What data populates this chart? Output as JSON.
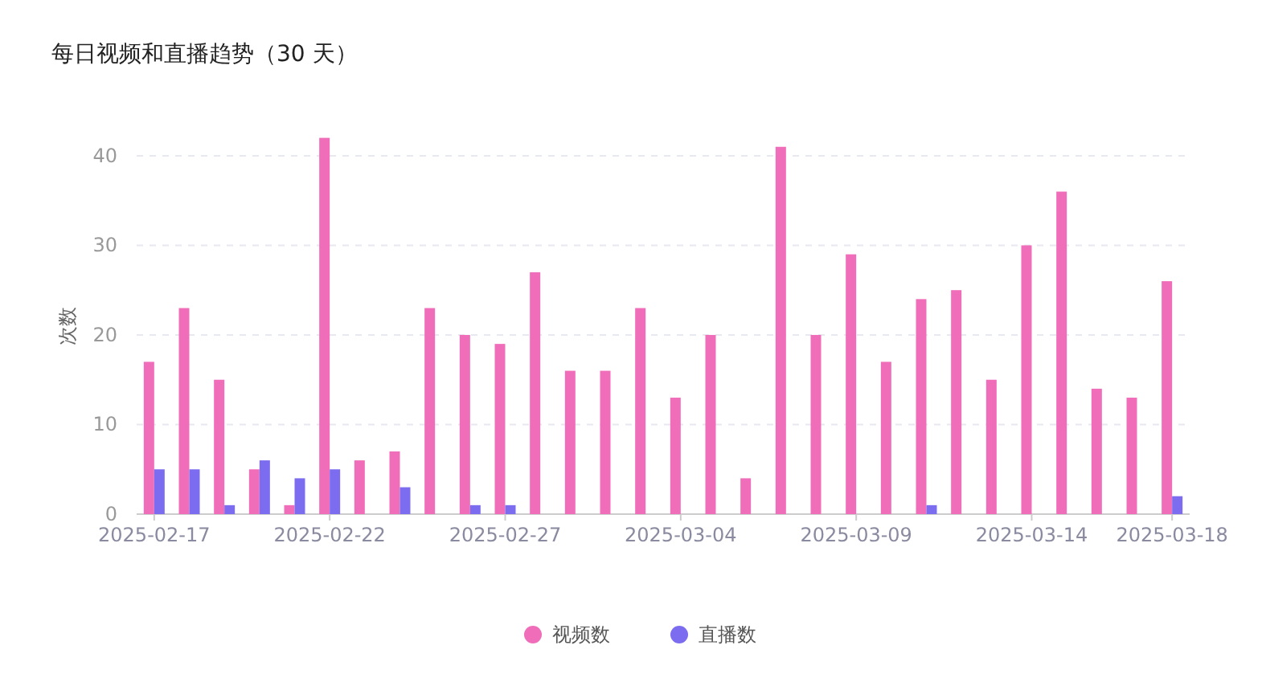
{
  "chart_data": {
    "type": "bar",
    "title": "每日视频和直播趋势（30 天）",
    "ylabel": "次数",
    "categories": [
      "2025-02-17",
      null,
      null,
      null,
      null,
      "2025-02-22",
      null,
      null,
      null,
      null,
      "2025-02-27",
      null,
      null,
      null,
      null,
      "2025-03-04",
      null,
      null,
      null,
      null,
      "2025-03-09",
      null,
      null,
      null,
      null,
      "2025-03-14",
      null,
      null,
      null,
      "2025-03-18"
    ],
    "series": [
      {
        "name": "视频数",
        "color": "#f06eb9",
        "values": [
          17,
          23,
          15,
          5,
          1,
          42,
          6,
          7,
          23,
          20,
          19,
          27,
          16,
          16,
          23,
          13,
          20,
          4,
          41,
          20,
          29,
          17,
          24,
          25,
          15,
          30,
          36,
          14,
          13,
          26
        ]
      },
      {
        "name": "直播数",
        "color": "#7b6cf0",
        "values": [
          5,
          5,
          1,
          6,
          4,
          5,
          0,
          3,
          0,
          1,
          1,
          0,
          0,
          0,
          0,
          0,
          0,
          0,
          0,
          0,
          0,
          0,
          1,
          0,
          0,
          0,
          0,
          0,
          0,
          2
        ]
      }
    ],
    "ylim": [
      0,
      42
    ],
    "yticks": [
      0,
      10,
      20,
      30,
      40
    ],
    "grid": "y",
    "legend": "bottom"
  }
}
